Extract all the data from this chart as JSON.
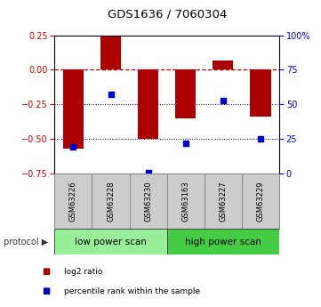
{
  "title": "GDS1636 / 7060304",
  "samples": [
    "GSM63226",
    "GSM63228",
    "GSM63230",
    "GSM63163",
    "GSM63227",
    "GSM63229"
  ],
  "log2_ratio": [
    -0.57,
    0.24,
    -0.5,
    -0.35,
    0.07,
    -0.34
  ],
  "percentile_rank": [
    19.0,
    57.0,
    0.5,
    22.0,
    53.0,
    25.0
  ],
  "bar_color": "#aa0000",
  "dot_color": "#0000cc",
  "ylim_left": [
    -0.75,
    0.25
  ],
  "ylim_right": [
    0,
    100
  ],
  "hlines": [
    0.0,
    -0.25,
    -0.5
  ],
  "hline_styles": [
    "dashed",
    "dotted",
    "dotted"
  ],
  "hline_colors": [
    "#cc0000",
    "#000000",
    "#000000"
  ],
  "yticks_left": [
    0.25,
    0.0,
    -0.25,
    -0.5,
    -0.75
  ],
  "yticks_right": [
    100,
    75,
    50,
    25,
    0
  ],
  "protocol_groups": [
    {
      "label": "low power scan",
      "samples": [
        "GSM63226",
        "GSM63228",
        "GSM63230"
      ],
      "color": "#99ee99"
    },
    {
      "label": "high power scan",
      "samples": [
        "GSM63163",
        "GSM63227",
        "GSM63229"
      ],
      "color": "#44cc44"
    }
  ],
  "legend_items": [
    {
      "label": "log2 ratio",
      "color": "#aa0000"
    },
    {
      "label": "percentile rank within the sample",
      "color": "#0000cc"
    }
  ],
  "bar_width": 0.55,
  "bg_color": "#ffffff",
  "sample_bg_color": "#cccccc",
  "axis_linewidth": 0.8
}
